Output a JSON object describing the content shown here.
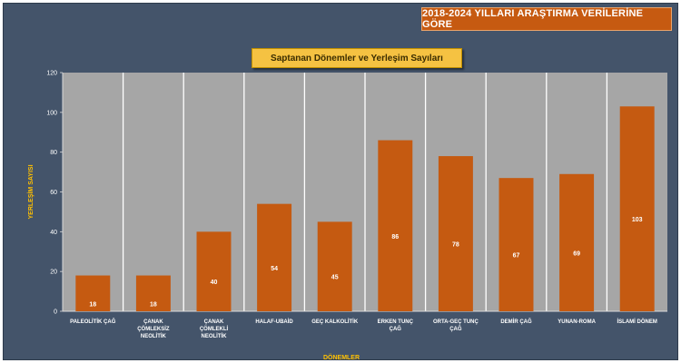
{
  "header": {
    "banner": "2018-2024 YILLARI ARAŞTIRMA VERİLERİNE GÖRE"
  },
  "colors": {
    "background": "#44546a",
    "plot_area": "#a6a6a6",
    "bar": "#c55a11",
    "banner": "#c65a11",
    "title_box": "#f5c242",
    "axis_label": "#ffc000"
  },
  "chart_data": {
    "type": "bar",
    "title": "Saptanan Dönemler ve Yerleşim Sayıları",
    "xlabel": "DÖNEMLER",
    "ylabel": "YERLEŞİM SAYISI",
    "ylim": [
      0,
      120
    ],
    "yticks": [
      0,
      20,
      40,
      60,
      80,
      100,
      120
    ],
    "grid": true,
    "categories": [
      [
        "PALEOLİTİK ÇAĞ"
      ],
      [
        "ÇANAK",
        "ÇÖMLEKSİZ",
        "NEOLİTİK"
      ],
      [
        "ÇANAK",
        "ÇÖMLEKLİ",
        "NEOLİTİK"
      ],
      [
        "HALAF-UBAİD"
      ],
      [
        "GEÇ KALKOLİTİK"
      ],
      [
        "ERKEN TUNÇ",
        "ÇAĞ"
      ],
      [
        "ORTA-GEÇ TUNÇ",
        "ÇAĞ"
      ],
      [
        "DEMİR ÇAĞ"
      ],
      [
        "YUNAN-ROMA"
      ],
      [
        "İSLAMİ DÖNEM"
      ]
    ],
    "values": [
      18,
      18,
      40,
      54,
      45,
      86,
      78,
      67,
      69,
      103
    ]
  }
}
